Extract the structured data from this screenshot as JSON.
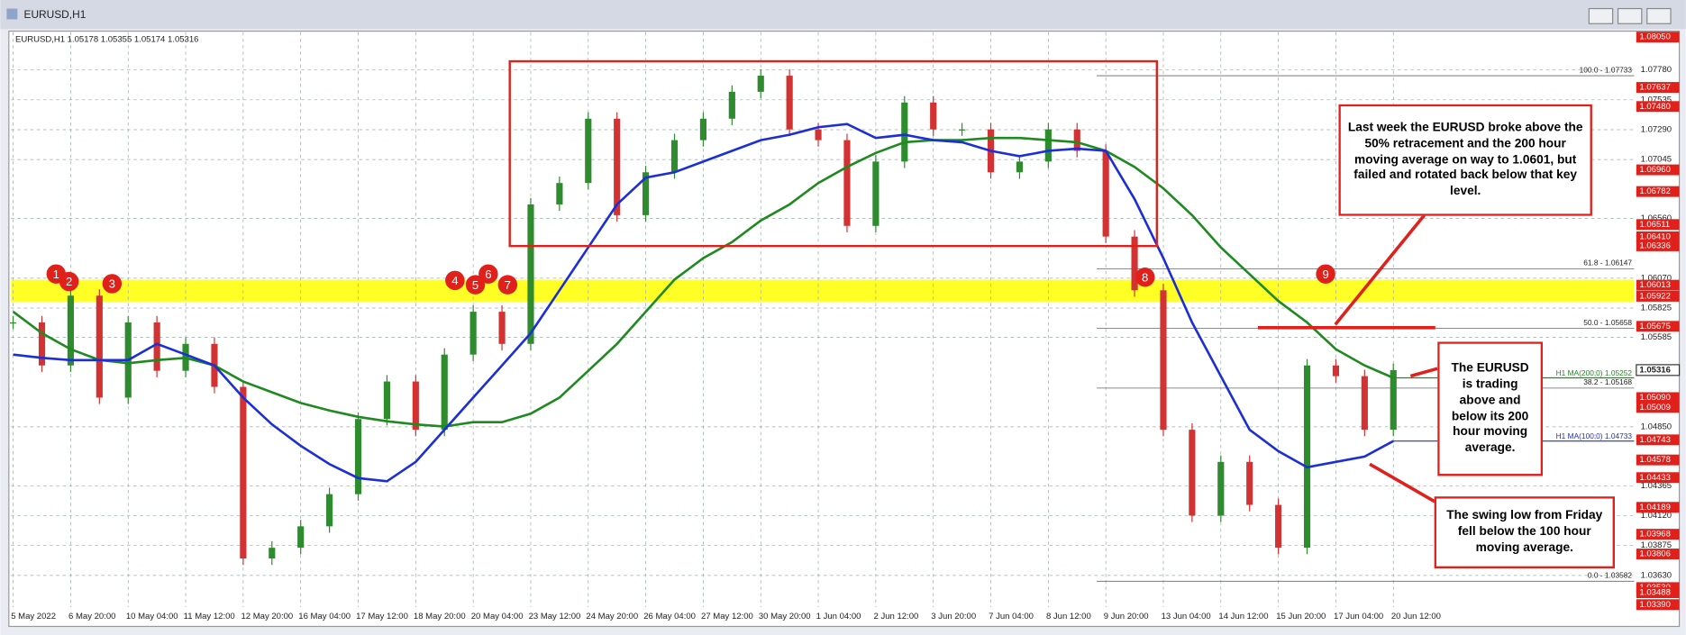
{
  "window_title": "EURUSD,H1",
  "chart_data": {
    "type": "candlestick",
    "header": "EURUSD,H1  1.05178 1.05355 1.05174 1.05316",
    "categories": [
      "5 May 2022",
      null,
      "6 May 20:00",
      null,
      "10 May 04:00",
      null,
      "11 May 12:00",
      null,
      "12 May 20:00",
      null,
      "16 May 04:00",
      null,
      "17 May 12:00",
      null,
      "18 May 20:00",
      null,
      "20 May 04:00",
      null,
      "23 May 12:00",
      null,
      "24 May 20:00",
      null,
      "26 May 04:00",
      null,
      "27 May 12:00",
      null,
      "30 May 20:00",
      null,
      "1 Jun 04:00",
      null,
      "2 Jun 12:00",
      null,
      "3 Jun 20:00",
      null,
      "7 Jun 04:00",
      null,
      "8 Jun 12:00",
      null,
      "9 Jun 20:00",
      null,
      "13 Jun 04:00",
      null,
      "14 Jun 12:00",
      null,
      "15 Jun 20:00",
      null,
      "17 Jun 04:00",
      null,
      "20 Jun 12:00"
    ],
    "series": [
      {
        "up_color": "#2e8b2e",
        "down_color": "#d23232",
        "values": [
          1.05707,
          1.05354,
          1.05927,
          1.0509,
          1.05707,
          1.0531,
          1.05531,
          1.05178,
          1.03769,
          1.03857,
          1.04033,
          1.04297,
          1.04914,
          1.05222,
          1.04826,
          1.05443,
          1.05795,
          1.05531,
          1.06676,
          1.06852,
          1.0738,
          1.06588,
          1.0694,
          1.07204,
          1.0738,
          1.07601,
          1.07733,
          1.07292,
          1.07204,
          1.065,
          1.07028,
          1.07513,
          1.07292,
          1.07292,
          1.0694,
          1.07028,
          1.07292,
          1.07116,
          1.06412,
          1.05971,
          1.04826,
          1.04121,
          1.04562,
          1.04209,
          1.03857,
          1.05354,
          1.05266,
          1.04826,
          1.05316
        ]
      },
      {
        "name": "H1 MA(200;0) 1.05252",
        "color": "#1f8a1f",
        "values": [
          1.05795,
          1.05619,
          1.05487,
          1.05398,
          1.05372,
          1.05398,
          1.05416,
          1.05354,
          1.05222,
          1.05134,
          1.05046,
          1.04984,
          1.04932,
          1.04896,
          1.0487,
          1.04852,
          1.04888,
          1.04888,
          1.04958,
          1.0509,
          1.0531,
          1.05531,
          1.05795,
          1.06059,
          1.06235,
          1.06367,
          1.06544,
          1.06676,
          1.06852,
          1.06984,
          1.07099,
          1.07187,
          1.07204,
          1.07204,
          1.07222,
          1.07222,
          1.07204,
          1.07187,
          1.07116,
          1.06984,
          1.06808,
          1.06588,
          1.06323,
          1.06103,
          1.05883,
          1.05707,
          1.05487,
          1.05354,
          1.05252
        ]
      },
      {
        "name": "H1 MA(100;0) 1.04733",
        "color": "#1c2fd6",
        "values": [
          1.05443,
          1.05416,
          1.05398,
          1.05398,
          1.05398,
          1.05531,
          1.05443,
          1.05354,
          1.0509,
          1.0487,
          1.04694,
          1.04544,
          1.04429,
          1.04403,
          1.04562,
          1.04826,
          1.0509,
          1.05354,
          1.05619,
          1.05971,
          1.06323,
          1.06676,
          1.06896,
          1.0694,
          1.07028,
          1.07116,
          1.07204,
          1.07248,
          1.0731,
          1.07336,
          1.07222,
          1.07248,
          1.07204,
          1.07187,
          1.07116,
          1.07072,
          1.07116,
          1.07134,
          1.07116,
          1.0672,
          1.06235,
          1.05707,
          1.05266,
          1.04826,
          1.0465,
          1.04518,
          1.04562,
          1.04606,
          1.04733
        ]
      }
    ],
    "ylim": [
      1.0337,
      1.0809
    ],
    "yticks": [
      {
        "value": 1.0778,
        "label": "1.07780"
      },
      1.07535,
      {
        "value": 1.0729,
        "label": "1.07290"
      },
      1.07045,
      {
        "value": 1.0656,
        "label": "1.06560"
      },
      {
        "value": 1.0607,
        "label": "1.06070"
      },
      1.05825,
      1.05585,
      {
        "value": 1.0485,
        "label": "1.04850"
      },
      1.04365,
      {
        "value": 1.0412,
        "label": "1.04120"
      },
      1.03875,
      {
        "value": 1.0363,
        "label": "1.03630"
      }
    ],
    "grid": true,
    "levels": [
      {
        "value": 1.0805,
        "label": "1.08050"
      },
      1.07637,
      {
        "value": 1.0748,
        "label": "1.07480"
      },
      {
        "value": 1.0696,
        "label": "1.06960"
      },
      1.06782,
      1.06511,
      {
        "value": 1.0641,
        "label": "1.06410"
      },
      1.06336,
      1.06013,
      1.05922,
      1.05675,
      {
        "value": 1.0509,
        "label": "1.05090"
      },
      1.05009,
      1.04743,
      1.04578,
      1.04433,
      1.04189,
      1.03968,
      1.03806,
      {
        "value": 1.0353,
        "label": "1.03530"
      },
      1.03488,
      {
        "value": 1.0339,
        "label": "1.03390"
      }
    ],
    "level_color": "#e0201b",
    "last_price": 1.05316,
    "zone": {
      "from": 1.05922,
      "to": 1.06013,
      "color": "#ffff00"
    },
    "fibonacci": [
      {
        "value": 1.07733,
        "label": "100.0 - 1.07733"
      },
      {
        "value": 1.06147,
        "label": "61.8 - 1.06147"
      },
      {
        "value": 1.05658,
        "label": "50.0 - 1.05658"
      },
      {
        "value": 1.05168,
        "label": "38.2 - 1.05168"
      },
      {
        "value": 1.03582,
        "label": "0.0 - 1.03582"
      }
    ],
    "markers": [
      "1",
      "2",
      "3",
      "4",
      "5",
      "6",
      "7",
      "8",
      "9"
    ],
    "annotations": [
      "Last week the EURUSD broke above the 50% retracement and the 200 hour moving average on way to 1.0601, but failed and rotated back below that key level.",
      "The EURUSD is trading above and below its 200 hour moving average.",
      "The swing low from Friday fell below the 100 hour moving average."
    ]
  }
}
